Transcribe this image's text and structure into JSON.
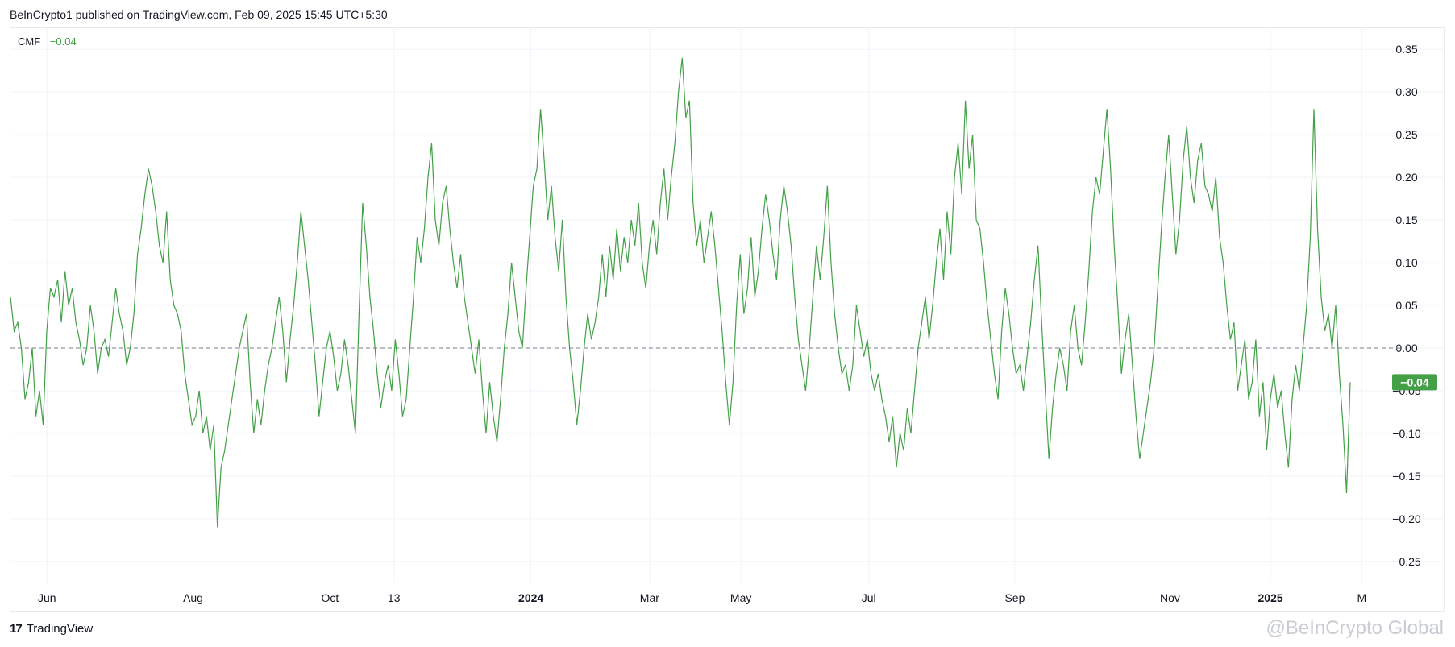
{
  "header": {
    "published_text": "BeInCrypto1 published on TradingView.com, Feb 09, 2025 15:45 UTC+5:30"
  },
  "legend": {
    "indicator_name": "CMF",
    "indicator_value": "−0.04"
  },
  "footer": {
    "brand": "TradingView",
    "logo_mark": "17",
    "watermark": "@BeInCrypto Global"
  },
  "colors": {
    "line": "#43a047",
    "grid": "#f0f3fa",
    "zero_line": "#9598a1",
    "badge_bg": "#43a047"
  },
  "chart_data": {
    "type": "line",
    "title": "",
    "series": [
      {
        "name": "CMF",
        "color": "#43a047",
        "values": [
          0.06,
          0.02,
          0.03,
          0.0,
          -0.06,
          -0.04,
          0.0,
          -0.08,
          -0.05,
          -0.09,
          0.02,
          0.07,
          0.06,
          0.08,
          0.03,
          0.09,
          0.05,
          0.07,
          0.03,
          0.01,
          -0.02,
          0.0,
          0.05,
          0.02,
          -0.03,
          0.0,
          0.01,
          -0.01,
          0.03,
          0.07,
          0.04,
          0.02,
          -0.02,
          0.0,
          0.04,
          0.11,
          0.14,
          0.18,
          0.21,
          0.19,
          0.16,
          0.12,
          0.1,
          0.16,
          0.08,
          0.05,
          0.04,
          0.02,
          -0.03,
          -0.06,
          -0.09,
          -0.08,
          -0.05,
          -0.1,
          -0.08,
          -0.12,
          -0.09,
          -0.21,
          -0.14,
          -0.12,
          -0.09,
          -0.06,
          -0.03,
          0.0,
          0.02,
          0.04,
          -0.04,
          -0.1,
          -0.06,
          -0.09,
          -0.05,
          -0.02,
          0.0,
          0.03,
          0.06,
          0.02,
          -0.04,
          0.01,
          0.05,
          0.1,
          0.16,
          0.12,
          0.08,
          0.03,
          -0.02,
          -0.08,
          -0.04,
          0.0,
          0.02,
          -0.01,
          -0.05,
          -0.03,
          0.01,
          -0.02,
          -0.06,
          -0.1,
          0.04,
          0.17,
          0.12,
          0.06,
          0.02,
          -0.03,
          -0.07,
          -0.04,
          -0.02,
          -0.05,
          0.01,
          -0.03,
          -0.08,
          -0.06,
          0.0,
          0.06,
          0.13,
          0.1,
          0.14,
          0.2,
          0.24,
          0.15,
          0.12,
          0.17,
          0.19,
          0.14,
          0.1,
          0.07,
          0.11,
          0.06,
          0.03,
          0.0,
          -0.03,
          0.01,
          -0.05,
          -0.1,
          -0.04,
          -0.08,
          -0.11,
          -0.06,
          0.0,
          0.04,
          0.1,
          0.06,
          0.02,
          0.0,
          0.07,
          0.13,
          0.19,
          0.21,
          0.28,
          0.22,
          0.15,
          0.19,
          0.13,
          0.09,
          0.15,
          0.06,
          0.0,
          -0.04,
          -0.09,
          -0.05,
          0.0,
          0.04,
          0.01,
          0.03,
          0.06,
          0.11,
          0.06,
          0.12,
          0.08,
          0.14,
          0.09,
          0.13,
          0.1,
          0.15,
          0.12,
          0.17,
          0.1,
          0.07,
          0.12,
          0.15,
          0.11,
          0.17,
          0.21,
          0.15,
          0.2,
          0.24,
          0.3,
          0.34,
          0.27,
          0.29,
          0.17,
          0.12,
          0.15,
          0.1,
          0.13,
          0.16,
          0.12,
          0.07,
          0.02,
          -0.04,
          -0.09,
          -0.04,
          0.05,
          0.11,
          0.04,
          0.07,
          0.13,
          0.06,
          0.09,
          0.14,
          0.18,
          0.15,
          0.11,
          0.08,
          0.15,
          0.19,
          0.16,
          0.12,
          0.06,
          0.01,
          -0.02,
          -0.05,
          0.0,
          0.06,
          0.12,
          0.08,
          0.13,
          0.19,
          0.1,
          0.04,
          0.0,
          -0.03,
          -0.02,
          -0.05,
          -0.02,
          0.05,
          0.02,
          -0.01,
          0.01,
          -0.03,
          -0.05,
          -0.03,
          -0.06,
          -0.08,
          -0.11,
          -0.08,
          -0.14,
          -0.1,
          -0.12,
          -0.07,
          -0.1,
          -0.05,
          0.0,
          0.03,
          0.06,
          0.01,
          0.05,
          0.1,
          0.14,
          0.08,
          0.16,
          0.11,
          0.2,
          0.24,
          0.18,
          0.29,
          0.21,
          0.25,
          0.15,
          0.14,
          0.1,
          0.05,
          0.01,
          -0.03,
          -0.06,
          0.02,
          0.07,
          0.04,
          0.0,
          -0.03,
          -0.02,
          -0.05,
          -0.01,
          0.03,
          0.08,
          0.12,
          0.03,
          -0.05,
          -0.13,
          -0.07,
          -0.03,
          0.0,
          -0.02,
          -0.05,
          0.02,
          0.05,
          0.0,
          -0.02,
          0.03,
          0.09,
          0.16,
          0.2,
          0.18,
          0.23,
          0.28,
          0.21,
          0.12,
          0.05,
          -0.03,
          0.01,
          0.04,
          -0.02,
          -0.08,
          -0.13,
          -0.1,
          -0.07,
          -0.04,
          0.0,
          0.07,
          0.14,
          0.2,
          0.25,
          0.18,
          0.11,
          0.15,
          0.22,
          0.26,
          0.2,
          0.17,
          0.22,
          0.24,
          0.19,
          0.18,
          0.16,
          0.2,
          0.13,
          0.1,
          0.05,
          0.01,
          0.03,
          -0.05,
          -0.02,
          0.01,
          -0.06,
          -0.04,
          0.01,
          -0.08,
          -0.04,
          -0.12,
          -0.06,
          -0.03,
          -0.07,
          -0.05,
          -0.1,
          -0.14,
          -0.06,
          -0.02,
          -0.05,
          0.0,
          0.05,
          0.13,
          0.28,
          0.14,
          0.06,
          0.02,
          0.04,
          0.0,
          0.05,
          -0.03,
          -0.09,
          -0.17,
          -0.04
        ]
      }
    ],
    "x_tick_labels": [
      "Jun",
      "Aug",
      "Oct",
      "13",
      "2024",
      "Mar",
      "May",
      "Jul",
      "Sep",
      "Nov",
      "2025",
      "M"
    ],
    "x_tick_bold": [
      false,
      false,
      false,
      false,
      true,
      false,
      false,
      false,
      false,
      false,
      true,
      false
    ],
    "x_tick_positions": [
      0.04,
      0.2,
      0.35,
      0.42,
      0.57,
      0.7,
      0.8,
      0.94,
      1.1,
      1.27,
      1.38,
      1.48
    ],
    "y_ticks": [
      "0.35",
      "0.30",
      "0.25",
      "0.20",
      "0.15",
      "0.10",
      "0.05",
      "0.00",
      "−0.05",
      "−0.10",
      "−0.15",
      "−0.20",
      "−0.25"
    ],
    "y_tick_values": [
      0.35,
      0.3,
      0.25,
      0.2,
      0.15,
      0.1,
      0.05,
      0.0,
      -0.05,
      -0.1,
      -0.15,
      -0.2,
      -0.25
    ],
    "ylim": [
      -0.27,
      0.37
    ],
    "zero_line": true,
    "last_value_label": "−0.04",
    "last_value": -0.04,
    "grid": true
  }
}
